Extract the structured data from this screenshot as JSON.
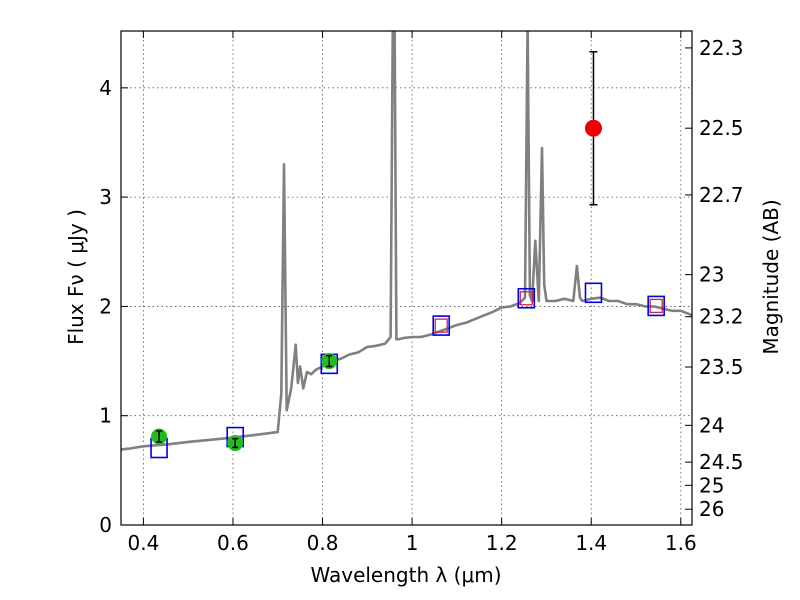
{
  "chart_data": {
    "type": "line",
    "title": "",
    "xlabel": "Wavelength  λ (μm)",
    "ylabel": "Flux  Fν  ( μJy )",
    "y2label": "Magnitude (AB)",
    "xlim": [
      0.35,
      1.625
    ],
    "ylim": [
      0,
      4.52
    ],
    "grid": true,
    "x_ticks": [
      {
        "value": 0.4,
        "label": "0.4"
      },
      {
        "value": 0.6,
        "label": "0.6"
      },
      {
        "value": 0.8,
        "label": "0.8"
      },
      {
        "value": 1.0,
        "label": "1"
      },
      {
        "value": 1.2,
        "label": "1.2"
      },
      {
        "value": 1.4,
        "label": "1.4"
      },
      {
        "value": 1.6,
        "label": "1.6"
      }
    ],
    "y_ticks": [
      {
        "value": 0,
        "label": "0"
      },
      {
        "value": 1,
        "label": "1"
      },
      {
        "value": 2,
        "label": "2"
      },
      {
        "value": 3,
        "label": "3"
      },
      {
        "value": 4,
        "label": "4"
      }
    ],
    "y2_ticks": [
      {
        "mag": 22.3,
        "label": "22.3"
      },
      {
        "mag": 22.5,
        "label": "22.5"
      },
      {
        "mag": 22.7,
        "label": "22.7"
      },
      {
        "mag": 23.0,
        "label": "23"
      },
      {
        "mag": 23.2,
        "label": "23.2"
      },
      {
        "mag": 23.5,
        "label": "23.5"
      },
      {
        "mag": 24.0,
        "label": "24"
      },
      {
        "mag": 24.5,
        "label": "24.5"
      },
      {
        "mag": 25.0,
        "label": "25"
      },
      {
        "mag": 26.0,
        "label": "26"
      }
    ],
    "sed_model": {
      "name": "model spectrum",
      "color": "#808080",
      "x": [
        0.35,
        0.37,
        0.4,
        0.43,
        0.46,
        0.5,
        0.55,
        0.6,
        0.64,
        0.68,
        0.7,
        0.708,
        0.714,
        0.72,
        0.73,
        0.74,
        0.745,
        0.75,
        0.757,
        0.765,
        0.775,
        0.785,
        0.8,
        0.82,
        0.84,
        0.86,
        0.88,
        0.9,
        0.92,
        0.94,
        0.952,
        0.957,
        0.961,
        0.965,
        0.97,
        0.98,
        1.0,
        1.02,
        1.04,
        1.06,
        1.08,
        1.1,
        1.12,
        1.15,
        1.18,
        1.2,
        1.22,
        1.24,
        1.252,
        1.258,
        1.263,
        1.268,
        1.275,
        1.283,
        1.29,
        1.295,
        1.3,
        1.31,
        1.32,
        1.34,
        1.36,
        1.368,
        1.375,
        1.38,
        1.4,
        1.42,
        1.44,
        1.46,
        1.48,
        1.5,
        1.52,
        1.54,
        1.56,
        1.58,
        1.6,
        1.625
      ],
      "y": [
        0.69,
        0.7,
        0.72,
        0.73,
        0.74,
        0.76,
        0.78,
        0.8,
        0.82,
        0.84,
        0.85,
        1.2,
        3.3,
        1.05,
        1.25,
        1.65,
        1.3,
        1.45,
        1.25,
        1.4,
        1.38,
        1.42,
        1.45,
        1.5,
        1.52,
        1.56,
        1.58,
        1.63,
        1.64,
        1.66,
        1.72,
        4.6,
        4.6,
        1.7,
        1.7,
        1.71,
        1.72,
        1.72,
        1.74,
        1.77,
        1.8,
        1.83,
        1.85,
        1.9,
        1.95,
        1.99,
        2.0,
        2.03,
        2.08,
        4.6,
        2.1,
        2.05,
        2.6,
        2.05,
        3.45,
        2.2,
        2.05,
        2.05,
        2.05,
        2.07,
        2.05,
        2.37,
        2.08,
        2.05,
        2.07,
        2.08,
        2.05,
        2.05,
        2.02,
        2.02,
        2.0,
        2.0,
        1.98,
        1.96,
        1.96,
        1.92
      ]
    },
    "model_photometry": [
      {
        "x": 0.435,
        "y": 0.7
      },
      {
        "x": 0.605,
        "y": 0.8
      },
      {
        "x": 0.815,
        "y": 1.47
      },
      {
        "x": 1.065,
        "y": 1.82
      },
      {
        "x": 1.255,
        "y": 2.07
      },
      {
        "x": 1.405,
        "y": 2.12
      },
      {
        "x": 1.545,
        "y": 2.0
      }
    ],
    "upper_limits": [
      {
        "x": 1.065,
        "y": 1.82
      },
      {
        "x": 1.255,
        "y": 2.07
      },
      {
        "x": 1.545,
        "y": 2.0
      }
    ],
    "observed": [
      {
        "x": 0.435,
        "y": 0.81,
        "err": 0.05
      },
      {
        "x": 0.605,
        "y": 0.75,
        "err": 0.04
      },
      {
        "x": 0.815,
        "y": 1.5,
        "err": 0.05
      }
    ],
    "highlight_point": {
      "x": 1.405,
      "y": 3.63,
      "err_low": 0.7,
      "err_high": 0.7
    },
    "colors": {
      "model_box": "#0000ee",
      "limit_box": "#cc2255",
      "observed": "#22bb22",
      "highlight": "#ee0000"
    }
  }
}
